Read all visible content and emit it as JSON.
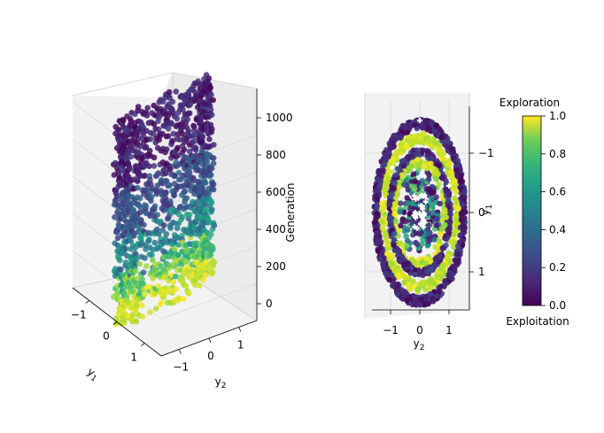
{
  "chart_data": [
    {
      "type": "scatter",
      "projection": "3d",
      "xlabel": "y_2",
      "ylabel": "y_1",
      "zlabel": "Generation",
      "x_ticks": [
        -1,
        0,
        1
      ],
      "y_ticks": [
        -1,
        0,
        1
      ],
      "z_ticks": [
        0,
        200,
        400,
        600,
        800,
        1000
      ],
      "xlim": [
        -1.6,
        1.6
      ],
      "ylim": [
        -1.6,
        1.6
      ],
      "zlim": [
        -50,
        1150
      ],
      "grid": true,
      "colormap": "viridis",
      "color_note": "Points spread over generations 0–1100 inside a cylinder of radius ~1.2; bottom layers (0–120) mostly exploration≈1 (yellow), middle (200–500) teal/green, top (600–1100) mostly exploitation≈0 (purple)."
    },
    {
      "type": "scatter",
      "projection": "3d-top-view",
      "xlabel": "y_2",
      "ylabel": "y_1",
      "x_ticks": [
        -1,
        0,
        1
      ],
      "y_ticks": [
        -1,
        0,
        1
      ],
      "xlim": [
        -1.8,
        1.8
      ],
      "ylim": [
        -1.6,
        1.6
      ],
      "colormap": "viridis",
      "structure_note": "Concentric elliptical bands (outer radius ~1.4, inner ~0.95) with yellow rings interleaved with purple; central cluster and scattered points marked with white plus markers."
    },
    {
      "type": "colorbar",
      "colormap": "viridis",
      "top_label": "Exploration",
      "bottom_label": "Exploitation",
      "range": [
        0.0,
        1.0
      ],
      "ticks": [
        "0.0",
        "0.2",
        "0.4",
        "0.6",
        "0.8",
        "1.0"
      ]
    }
  ]
}
